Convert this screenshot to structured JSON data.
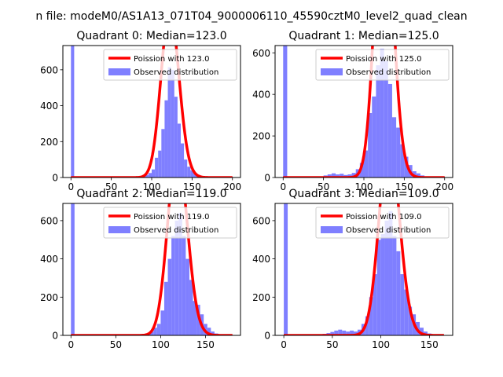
{
  "figure": {
    "suptitle": "n file: modeM0/AS1A13_071T04_9000006110_45590cztM0_level2_quad_clean"
  },
  "colors": {
    "histogram": "#7f7fff",
    "poisson": "#ff0000",
    "axis": "#000000"
  },
  "chart_data": [
    {
      "type": "bar",
      "title": "Quadrant 0: Median=123.0",
      "xlim": [
        -10,
        210
      ],
      "ylim": [
        0,
        735
      ],
      "xticks": [
        0,
        50,
        100,
        150,
        200
      ],
      "yticks": [
        0,
        200,
        400,
        600
      ],
      "legend": {
        "placement": "top-right",
        "entries": [
          "Poission with 123.0",
          "Observed distribution"
        ]
      },
      "series": [
        {
          "name": "Observed distribution",
          "kind": "histogram",
          "bin_width": 4,
          "bins": [
            {
              "x": 0,
              "y": 735
            },
            {
              "x": 80,
              "y": 4
            },
            {
              "x": 84,
              "y": 6
            },
            {
              "x": 88,
              "y": 10
            },
            {
              "x": 92,
              "y": 15
            },
            {
              "x": 96,
              "y": 25
            },
            {
              "x": 100,
              "y": 45
            },
            {
              "x": 104,
              "y": 110
            },
            {
              "x": 108,
              "y": 150
            },
            {
              "x": 112,
              "y": 270
            },
            {
              "x": 116,
              "y": 430
            },
            {
              "x": 120,
              "y": 615
            },
            {
              "x": 124,
              "y": 600
            },
            {
              "x": 128,
              "y": 450
            },
            {
              "x": 132,
              "y": 300
            },
            {
              "x": 136,
              "y": 190
            },
            {
              "x": 140,
              "y": 100
            },
            {
              "x": 144,
              "y": 60
            },
            {
              "x": 148,
              "y": 40
            },
            {
              "x": 152,
              "y": 25
            },
            {
              "x": 156,
              "y": 15
            },
            {
              "x": 160,
              "y": 8
            },
            {
              "x": 164,
              "y": 4
            }
          ]
        },
        {
          "name": "Poission with 123.0",
          "kind": "poisson",
          "lambda": 123.0,
          "total": 6500,
          "bin_width": 4,
          "x_range": [
            0,
            200
          ]
        }
      ]
    },
    {
      "type": "bar",
      "title": "Quadrant 1: Median=125.0",
      "xlim": [
        -10,
        210
      ],
      "ylim": [
        0,
        635
      ],
      "xticks": [
        0,
        50,
        100,
        150,
        200
      ],
      "yticks": [
        0,
        200,
        400,
        600
      ],
      "legend": {
        "placement": "top-right",
        "entries": [
          "Poission with 125.0",
          "Observed distribution"
        ]
      },
      "series": [
        {
          "name": "Observed distribution",
          "kind": "histogram",
          "bin_width": 5,
          "bins": [
            {
              "x": 0,
              "y": 635
            },
            {
              "x": 50,
              "y": 10
            },
            {
              "x": 55,
              "y": 15
            },
            {
              "x": 60,
              "y": 20
            },
            {
              "x": 65,
              "y": 15
            },
            {
              "x": 70,
              "y": 18
            },
            {
              "x": 75,
              "y": 12
            },
            {
              "x": 80,
              "y": 15
            },
            {
              "x": 85,
              "y": 22
            },
            {
              "x": 90,
              "y": 40
            },
            {
              "x": 95,
              "y": 70
            },
            {
              "x": 100,
              "y": 130
            },
            {
              "x": 105,
              "y": 310
            },
            {
              "x": 110,
              "y": 390
            },
            {
              "x": 115,
              "y": 540
            },
            {
              "x": 120,
              "y": 620
            },
            {
              "x": 125,
              "y": 560
            },
            {
              "x": 130,
              "y": 450
            },
            {
              "x": 135,
              "y": 290
            },
            {
              "x": 140,
              "y": 240
            },
            {
              "x": 145,
              "y": 160
            },
            {
              "x": 150,
              "y": 100
            },
            {
              "x": 155,
              "y": 60
            },
            {
              "x": 160,
              "y": 30
            },
            {
              "x": 165,
              "y": 20
            },
            {
              "x": 170,
              "y": 10
            }
          ]
        },
        {
          "name": "Poission with 125.0",
          "kind": "poisson",
          "lambda": 125.0,
          "total": 7850,
          "bin_width": 5,
          "x_range": [
            0,
            200
          ]
        }
      ]
    },
    {
      "type": "bar",
      "title": "Quadrant 2: Median=119.0",
      "xlim": [
        -9,
        189
      ],
      "ylim": [
        0,
        690
      ],
      "xticks": [
        0,
        50,
        100,
        150
      ],
      "yticks": [
        0,
        200,
        400,
        600
      ],
      "legend": {
        "placement": "top-right",
        "entries": [
          "Poission with 119.0",
          "Observed distribution"
        ]
      },
      "series": [
        {
          "name": "Observed distribution",
          "kind": "histogram",
          "bin_width": 4,
          "bins": [
            {
              "x": 0,
              "y": 690
            },
            {
              "x": 76,
              "y": 4
            },
            {
              "x": 80,
              "y": 8
            },
            {
              "x": 84,
              "y": 10
            },
            {
              "x": 88,
              "y": 20
            },
            {
              "x": 92,
              "y": 40
            },
            {
              "x": 96,
              "y": 60
            },
            {
              "x": 100,
              "y": 130
            },
            {
              "x": 104,
              "y": 280
            },
            {
              "x": 108,
              "y": 400
            },
            {
              "x": 112,
              "y": 520
            },
            {
              "x": 116,
              "y": 600
            },
            {
              "x": 120,
              "y": 640
            },
            {
              "x": 124,
              "y": 520
            },
            {
              "x": 128,
              "y": 400
            },
            {
              "x": 132,
              "y": 290
            },
            {
              "x": 136,
              "y": 180
            },
            {
              "x": 140,
              "y": 160
            },
            {
              "x": 144,
              "y": 110
            },
            {
              "x": 148,
              "y": 60
            },
            {
              "x": 152,
              "y": 40
            },
            {
              "x": 156,
              "y": 20
            },
            {
              "x": 160,
              "y": 10
            },
            {
              "x": 164,
              "y": 5
            }
          ]
        },
        {
          "name": "Poission with 119.0",
          "kind": "poisson",
          "lambda": 119.0,
          "total": 6600,
          "bin_width": 4,
          "x_range": [
            0,
            180
          ]
        }
      ]
    },
    {
      "type": "bar",
      "title": "Quadrant 3: Median=109.0",
      "xlim": [
        -9,
        174
      ],
      "ylim": [
        0,
        690
      ],
      "xticks": [
        0,
        50,
        100,
        150
      ],
      "yticks": [
        0,
        200,
        400,
        600
      ],
      "legend": {
        "placement": "top-right",
        "entries": [
          "Poission with 109.0",
          "Observed distribution"
        ]
      },
      "series": [
        {
          "name": "Observed distribution",
          "kind": "histogram",
          "bin_width": 4,
          "bins": [
            {
              "x": 0,
              "y": 690
            },
            {
              "x": 36,
              "y": 5
            },
            {
              "x": 40,
              "y": 8
            },
            {
              "x": 44,
              "y": 12
            },
            {
              "x": 48,
              "y": 18
            },
            {
              "x": 52,
              "y": 25
            },
            {
              "x": 56,
              "y": 30
            },
            {
              "x": 60,
              "y": 25
            },
            {
              "x": 64,
              "y": 20
            },
            {
              "x": 68,
              "y": 25
            },
            {
              "x": 72,
              "y": 20
            },
            {
              "x": 76,
              "y": 30
            },
            {
              "x": 80,
              "y": 60
            },
            {
              "x": 84,
              "y": 100
            },
            {
              "x": 88,
              "y": 200
            },
            {
              "x": 92,
              "y": 320
            },
            {
              "x": 96,
              "y": 500
            },
            {
              "x": 100,
              "y": 530
            },
            {
              "x": 104,
              "y": 600
            },
            {
              "x": 108,
              "y": 650
            },
            {
              "x": 112,
              "y": 520
            },
            {
              "x": 116,
              "y": 440
            },
            {
              "x": 120,
              "y": 320
            },
            {
              "x": 124,
              "y": 240
            },
            {
              "x": 128,
              "y": 150
            },
            {
              "x": 132,
              "y": 110
            },
            {
              "x": 136,
              "y": 70
            },
            {
              "x": 140,
              "y": 40
            },
            {
              "x": 144,
              "y": 20
            },
            {
              "x": 148,
              "y": 10
            },
            {
              "x": 152,
              "y": 5
            }
          ]
        },
        {
          "name": "Poission with 109.0",
          "kind": "poisson",
          "lambda": 109.0,
          "total": 6700,
          "bin_width": 4,
          "x_range": [
            0,
            165
          ]
        }
      ]
    }
  ]
}
